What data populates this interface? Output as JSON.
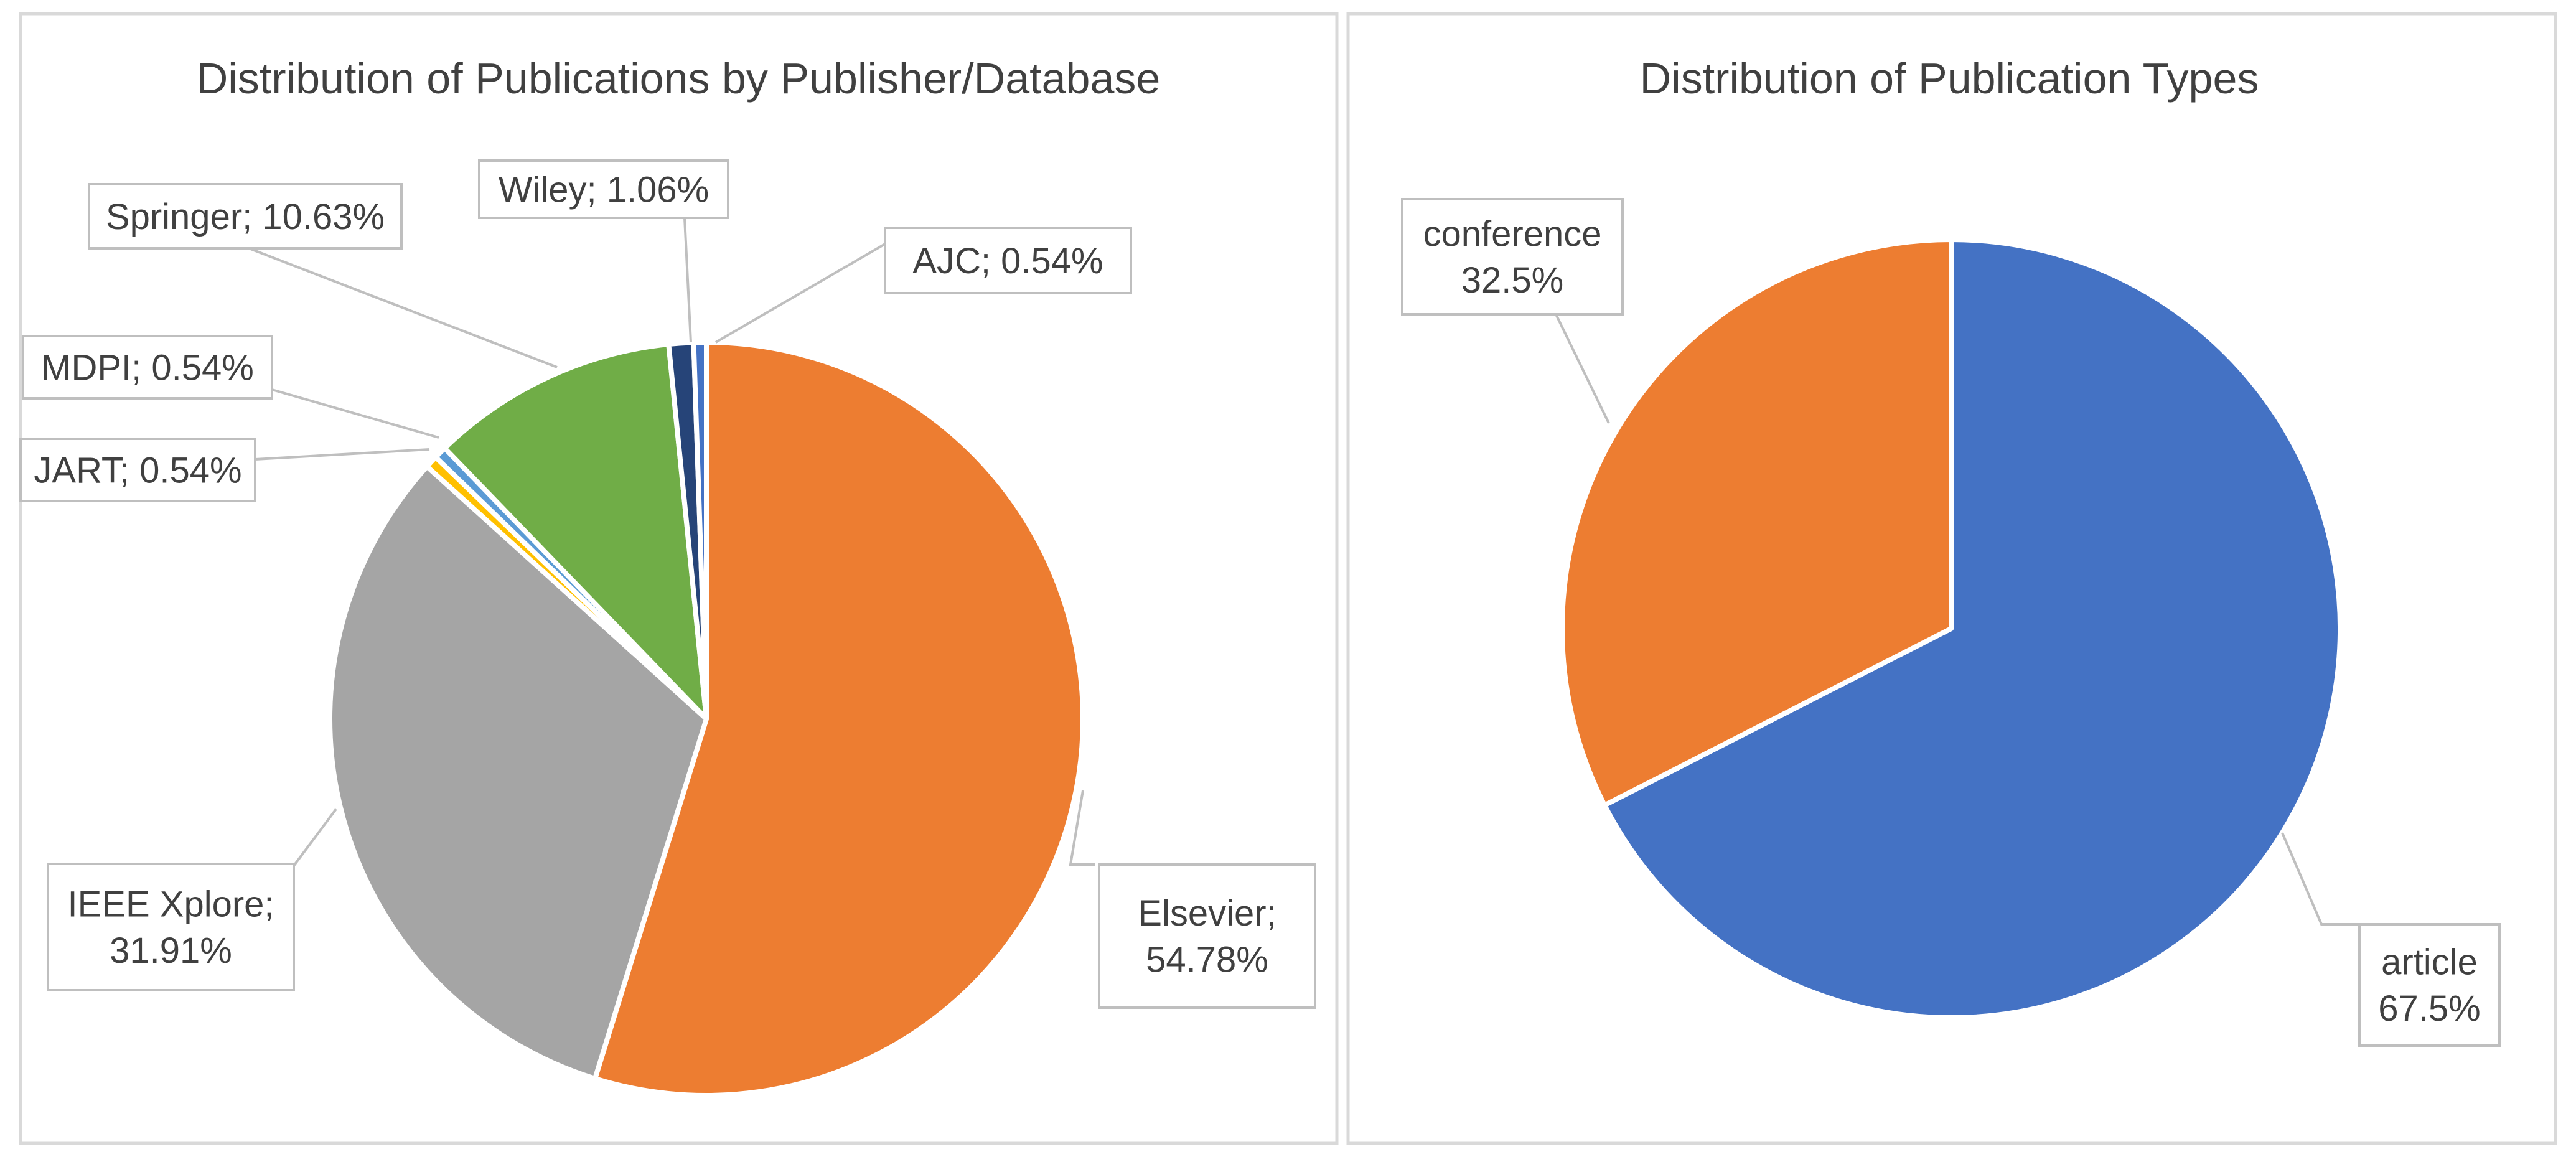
{
  "chart_data": [
    {
      "type": "pie",
      "title": "Distribution of Publications by Publisher/Database",
      "slices": [
        {
          "name": "Elsevier",
          "value": 54.78,
          "label_lines": [
            "Elsevier;",
            "54.78%"
          ],
          "color": "#ED7D31"
        },
        {
          "name": "IEEE Xplore",
          "value": 31.91,
          "label_lines": [
            "IEEE Xplore;",
            "31.91%"
          ],
          "color": "#A5A5A5"
        },
        {
          "name": "JART",
          "value": 0.54,
          "label_lines": [
            "JART; 0.54%"
          ],
          "color": "#FFC000"
        },
        {
          "name": "MDPI",
          "value": 0.54,
          "label_lines": [
            "MDPI; 0.54%"
          ],
          "color": "#5B9BD5"
        },
        {
          "name": "Springer",
          "value": 10.63,
          "label_lines": [
            "Springer; 10.63%"
          ],
          "color": "#70AD47"
        },
        {
          "name": "Wiley",
          "value": 1.06,
          "label_lines": [
            "Wiley; 1.06%"
          ],
          "color": "#264478"
        },
        {
          "name": "AJC",
          "value": 0.54,
          "label_lines": [
            "AJC; 0.54%"
          ],
          "color": "#4472C4"
        }
      ],
      "legend": "none",
      "label_style": "callout"
    },
    {
      "type": "pie",
      "title": "Distribution of Publication Types",
      "slices": [
        {
          "name": "article",
          "value": 67.5,
          "label_lines": [
            "article",
            "67.5%"
          ],
          "color": "#4472C4"
        },
        {
          "name": "conference",
          "value": 32.5,
          "label_lines": [
            "conference",
            "32.5%"
          ],
          "color": "#ED7D31"
        }
      ],
      "legend": "none",
      "label_style": "callout"
    }
  ]
}
